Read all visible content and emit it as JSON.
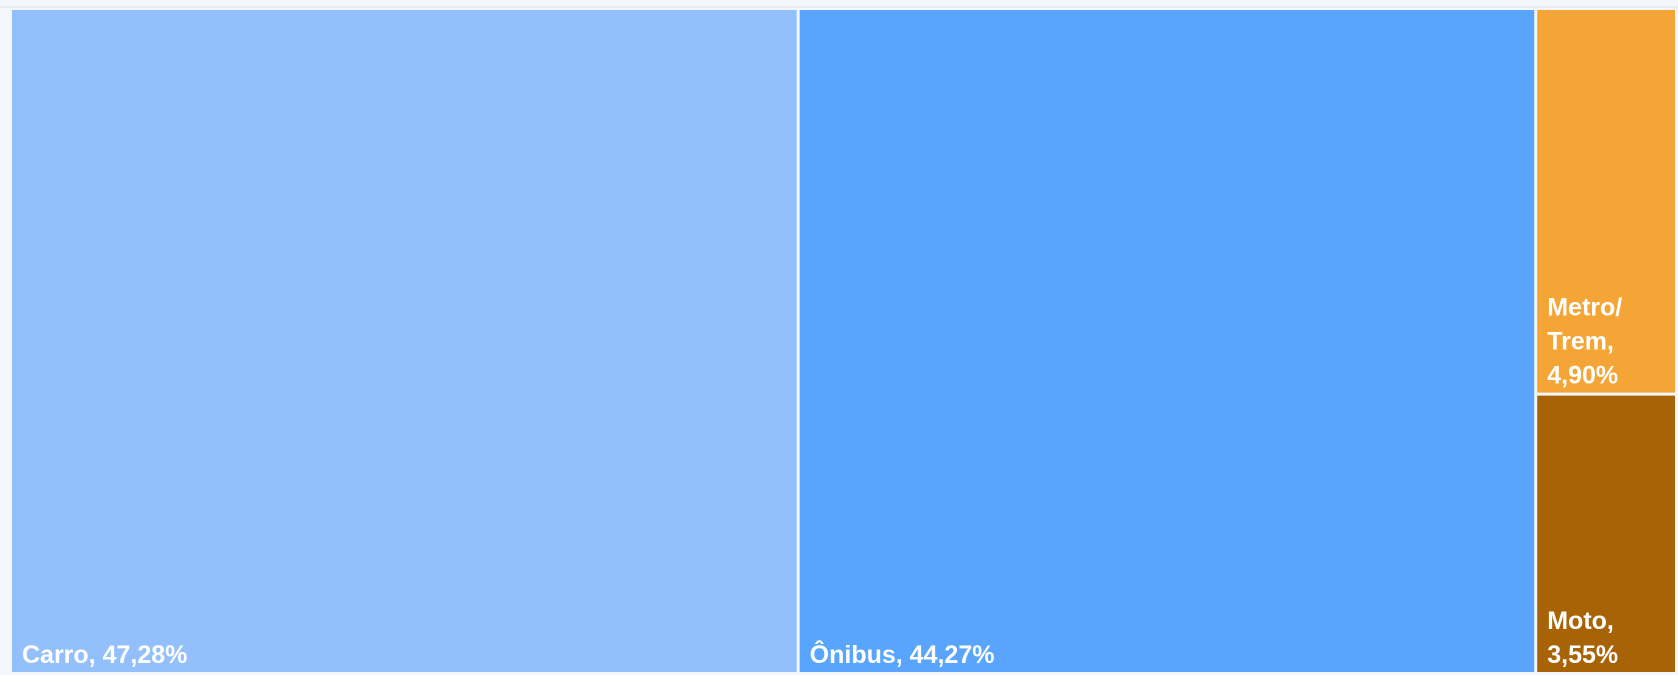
{
  "chart_data": {
    "type": "treemap",
    "values": [
      47.28,
      44.27,
      4.9,
      3.55
    ],
    "value_labels": [
      "Carro, 47,28%",
      "Ônibus, 44,27%",
      "Metro/Trem, 4,90%",
      "Moto, 3,55%"
    ],
    "colors": [
      "#93c0fd",
      "#59a5fe",
      "#f5a535",
      "#a96307"
    ]
  }
}
